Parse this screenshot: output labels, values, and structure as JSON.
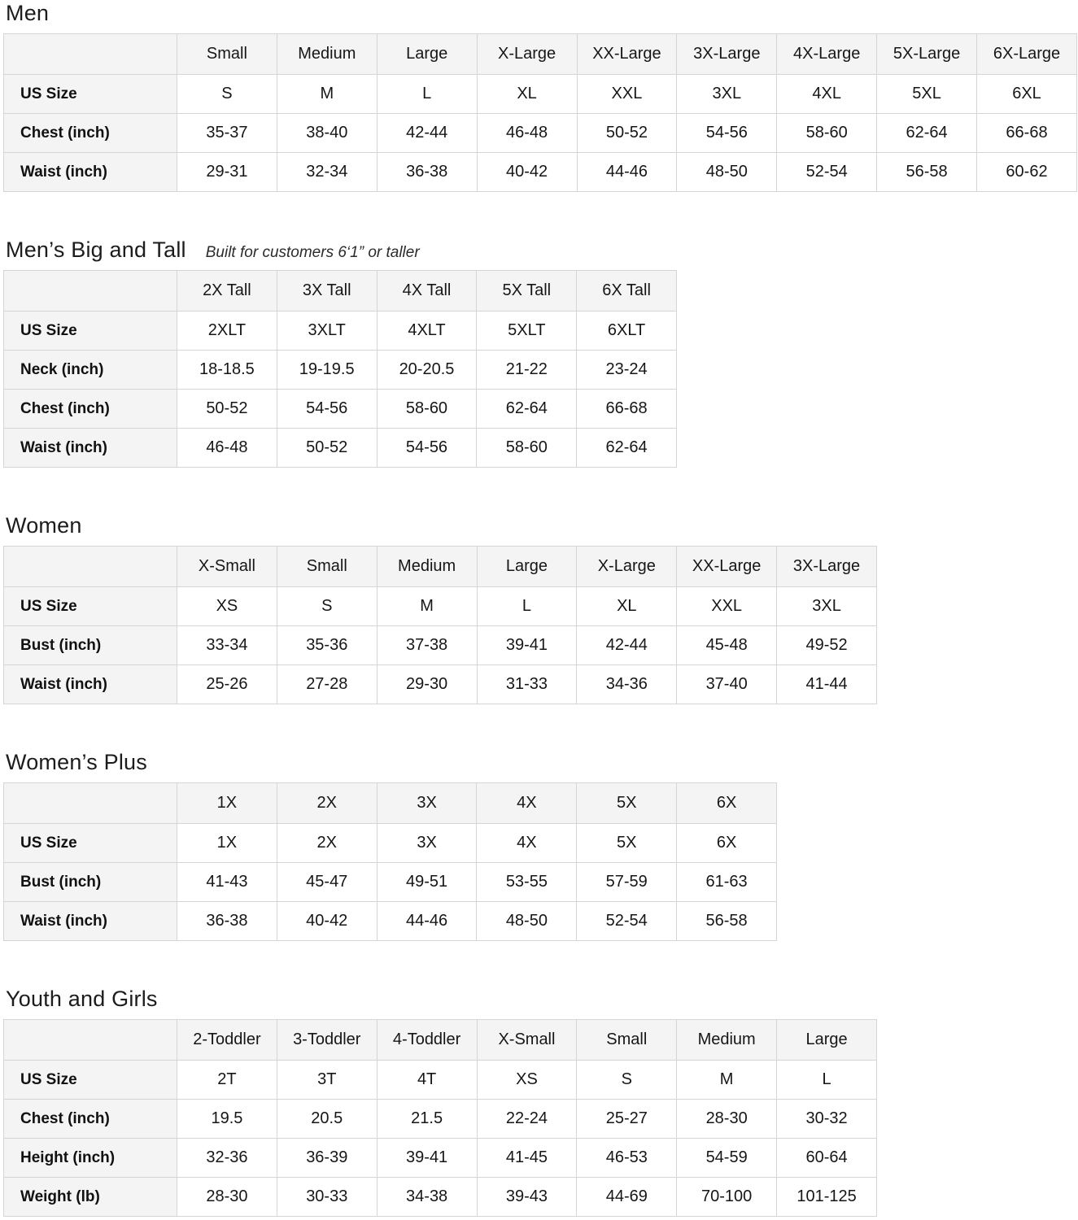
{
  "colors": {
    "cell_shade": "#f4f4f4",
    "table_border": "#d5d5d5",
    "title_text": "#1c1c1c",
    "body_text": "#161616"
  },
  "sections": [
    {
      "title": "Men",
      "subtitle": "",
      "columns": [
        "Small",
        "Medium",
        "Large",
        "X-Large",
        "XX-Large",
        "3X-Large",
        "4X-Large",
        "5X-Large",
        "6X-Large"
      ],
      "rows": [
        {
          "label": "US Size",
          "values": [
            "S",
            "M",
            "L",
            "XL",
            "XXL",
            "3XL",
            "4XL",
            "5XL",
            "6XL"
          ]
        },
        {
          "label": "Chest (inch)",
          "values": [
            "35-37",
            "38-40",
            "42-44",
            "46-48",
            "50-52",
            "54-56",
            "58-60",
            "62-64",
            "66-68"
          ]
        },
        {
          "label": "Waist (inch)",
          "values": [
            "29-31",
            "32-34",
            "36-38",
            "40-42",
            "44-46",
            "48-50",
            "52-54",
            "56-58",
            "60-62"
          ]
        }
      ]
    },
    {
      "title": "Men’s Big and Tall",
      "subtitle": "Built for customers 6‘1” or taller",
      "columns": [
        "2X Tall",
        "3X Tall",
        "4X Tall",
        "5X Tall",
        "6X Tall"
      ],
      "rows": [
        {
          "label": "US Size",
          "values": [
            "2XLT",
            "3XLT",
            "4XLT",
            "5XLT",
            "6XLT"
          ]
        },
        {
          "label": "Neck (inch)",
          "values": [
            "18-18.5",
            "19-19.5",
            "20-20.5",
            "21-22",
            "23-24"
          ]
        },
        {
          "label": "Chest (inch)",
          "values": [
            "50-52",
            "54-56",
            "58-60",
            "62-64",
            "66-68"
          ]
        },
        {
          "label": "Waist (inch)",
          "values": [
            "46-48",
            "50-52",
            "54-56",
            "58-60",
            "62-64"
          ]
        }
      ]
    },
    {
      "title": "Women",
      "subtitle": "",
      "columns": [
        "X-Small",
        "Small",
        "Medium",
        "Large",
        "X-Large",
        "XX-Large",
        "3X-Large"
      ],
      "rows": [
        {
          "label": "US Size",
          "values": [
            "XS",
            "S",
            "M",
            "L",
            "XL",
            "XXL",
            "3XL"
          ]
        },
        {
          "label": "Bust (inch)",
          "values": [
            "33-34",
            "35-36",
            "37-38",
            "39-41",
            "42-44",
            "45-48",
            "49-52"
          ]
        },
        {
          "label": "Waist (inch)",
          "values": [
            "25-26",
            "27-28",
            "29-30",
            "31-33",
            "34-36",
            "37-40",
            "41-44"
          ]
        }
      ]
    },
    {
      "title": "Women’s  Plus",
      "subtitle": "",
      "columns": [
        "1X",
        "2X",
        "3X",
        "4X",
        "5X",
        "6X"
      ],
      "rows": [
        {
          "label": "US Size",
          "values": [
            "1X",
            "2X",
            "3X",
            "4X",
            "5X",
            "6X"
          ]
        },
        {
          "label": "Bust (inch)",
          "values": [
            "41-43",
            "45-47",
            "49-51",
            "53-55",
            "57-59",
            "61-63"
          ]
        },
        {
          "label": "Waist (inch)",
          "values": [
            "36-38",
            "40-42",
            "44-46",
            "48-50",
            "52-54",
            "56-58"
          ]
        }
      ]
    },
    {
      "title": "Youth and Girls",
      "subtitle": "",
      "columns": [
        "2-Toddler",
        "3-Toddler",
        "4-Toddler",
        "X-Small",
        "Small",
        "Medium",
        "Large"
      ],
      "rows": [
        {
          "label": "US Size",
          "values": [
            "2T",
            "3T",
            "4T",
            "XS",
            "S",
            "M",
            "L"
          ]
        },
        {
          "label": "Chest (inch)",
          "values": [
            "19.5",
            "20.5",
            "21.5",
            "22-24",
            "25-27",
            "28-30",
            "30-32"
          ]
        },
        {
          "label": "Height (inch)",
          "values": [
            "32-36",
            "36-39",
            "39-41",
            "41-45",
            "46-53",
            "54-59",
            "60-64"
          ]
        },
        {
          "label": "Weight (lb)",
          "values": [
            "28-30",
            "30-33",
            "34-38",
            "39-43",
            "44-69",
            "70-100",
            "101-125"
          ]
        }
      ]
    }
  ]
}
